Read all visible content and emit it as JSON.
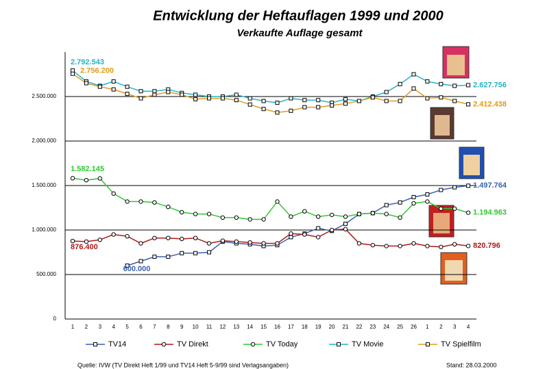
{
  "chart_data": {
    "type": "line",
    "title": "Entwicklung der Heftauflagen 1999 und 2000",
    "subtitle": "Verkaufte Auflage gesamt",
    "source": "Quelle: IVW (TV Direkt Heft 1/99 und TV14 Heft 5-9/99 sind Verlagsangaben)",
    "date_note": "Stand: 28.03.2000",
    "categories": [
      "1",
      "2",
      "3",
      "4",
      "5",
      "6",
      "7",
      "8",
      "9",
      "10",
      "11",
      "12",
      "13",
      "14",
      "15",
      "16",
      "17",
      "18",
      "19",
      "20",
      "21",
      "22",
      "23",
      "24",
      "25",
      "26",
      "1",
      "2",
      "3",
      "4"
    ],
    "ylim": [
      0,
      3000000
    ],
    "yticks": [
      0,
      {
        "value": 500000,
        "label": "500.000"
      },
      {
        "value": 1000000,
        "label": "1.000.000"
      },
      {
        "value": 1500000,
        "label": "1.500.000"
      },
      {
        "value": 2000000,
        "label": "2.000.000"
      },
      {
        "value": 2500000,
        "label": "2.500.000"
      }
    ],
    "grid": true,
    "legend": "bottom",
    "series": [
      {
        "name": "TV14",
        "color": "#3a5fb0",
        "marker": "square",
        "values": [
          null,
          null,
          null,
          null,
          600000,
          650000,
          700000,
          700000,
          740000,
          740000,
          750000,
          870000,
          850000,
          840000,
          820000,
          830000,
          920000,
          960000,
          1020000,
          990000,
          1070000,
          1180000,
          1190000,
          1280000,
          1310000,
          1370000,
          1400000,
          1450000,
          1480000,
          1497764
        ],
        "value_labels": [
          null,
          null,
          null,
          null,
          "600.000",
          null,
          null,
          null,
          null,
          null,
          null,
          null,
          null,
          null,
          null,
          null,
          null,
          null,
          null,
          null,
          null,
          null,
          null,
          null,
          null,
          null,
          null,
          null,
          null,
          "1.497.764"
        ]
      },
      {
        "name": "TV Direkt",
        "color": "#b01818",
        "marker": "circle",
        "values": [
          876400,
          870000,
          890000,
          950000,
          930000,
          850000,
          910000,
          910000,
          900000,
          910000,
          850000,
          880000,
          870000,
          860000,
          850000,
          850000,
          960000,
          950000,
          920000,
          1000000,
          1010000,
          850000,
          830000,
          820000,
          820000,
          850000,
          820000,
          810000,
          840000,
          820796
        ],
        "value_labels": [
          "876.400",
          null,
          null,
          null,
          null,
          null,
          null,
          null,
          null,
          null,
          null,
          null,
          null,
          null,
          null,
          null,
          null,
          null,
          null,
          null,
          null,
          null,
          null,
          null,
          null,
          null,
          null,
          null,
          null,
          "820.796"
        ]
      },
      {
        "name": "TV Today",
        "color": "#2ec82e",
        "marker": "circle",
        "values": [
          1582145,
          1560000,
          1580000,
          1410000,
          1320000,
          1320000,
          1310000,
          1260000,
          1200000,
          1180000,
          1180000,
          1140000,
          1140000,
          1120000,
          1120000,
          1320000,
          1150000,
          1210000,
          1150000,
          1170000,
          1150000,
          1180000,
          1190000,
          1180000,
          1140000,
          1300000,
          1320000,
          1240000,
          1240000,
          1194963
        ],
        "value_labels": [
          "1.582.145",
          null,
          null,
          null,
          null,
          null,
          null,
          null,
          null,
          null,
          null,
          null,
          null,
          null,
          null,
          null,
          null,
          null,
          null,
          null,
          null,
          null,
          null,
          null,
          null,
          null,
          null,
          null,
          null,
          "1.194.963"
        ]
      },
      {
        "name": "TV Movie",
        "color": "#1fb5c8",
        "marker": "square",
        "values": [
          2792543,
          2670000,
          2620000,
          2670000,
          2610000,
          2560000,
          2560000,
          2580000,
          2540000,
          2520000,
          2500000,
          2500000,
          2520000,
          2480000,
          2450000,
          2430000,
          2480000,
          2460000,
          2460000,
          2430000,
          2470000,
          2450000,
          2500000,
          2550000,
          2640000,
          2750000,
          2670000,
          2640000,
          2620000,
          2627756
        ],
        "value_labels": [
          "2.792.543",
          null,
          null,
          null,
          null,
          null,
          null,
          null,
          null,
          null,
          null,
          null,
          null,
          null,
          null,
          null,
          null,
          null,
          null,
          null,
          null,
          null,
          null,
          null,
          null,
          null,
          null,
          null,
          null,
          "2.627.756"
        ]
      },
      {
        "name": "TV Spielfilm",
        "color": "#e09a18",
        "marker": "square",
        "values": [
          2756200,
          2650000,
          2610000,
          2580000,
          2530000,
          2480000,
          2520000,
          2550000,
          2520000,
          2470000,
          2480000,
          2480000,
          2460000,
          2410000,
          2360000,
          2320000,
          2340000,
          2380000,
          2380000,
          2400000,
          2420000,
          2450000,
          2490000,
          2450000,
          2450000,
          2590000,
          2480000,
          2490000,
          2450000,
          2412438
        ],
        "value_labels": [
          "2.756.200",
          null,
          null,
          null,
          null,
          null,
          null,
          null,
          null,
          null,
          null,
          null,
          null,
          null,
          null,
          null,
          null,
          null,
          null,
          null,
          null,
          null,
          null,
          null,
          null,
          null,
          null,
          null,
          null,
          "2.412.438"
        ]
      }
    ]
  }
}
